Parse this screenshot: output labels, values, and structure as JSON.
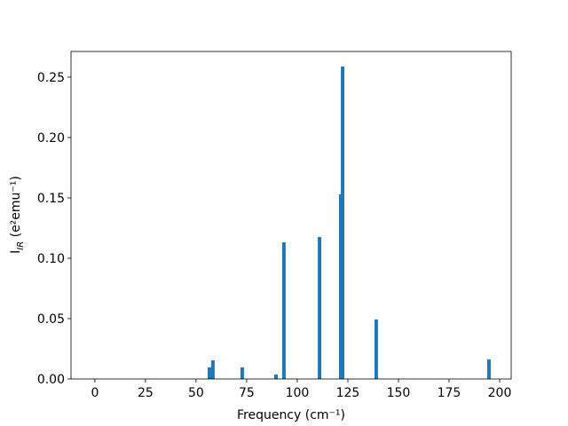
{
  "chart_data": {
    "type": "bar",
    "xlabel": "Frequency (cm⁻¹)",
    "ylabel": [
      "I",
      "IR",
      " (e²emu⁻¹)"
    ],
    "x": [
      56.6,
      58.3,
      72.8,
      89.5,
      93.4,
      111.0,
      121.5,
      122.4,
      139.0,
      194.7
    ],
    "values": [
      0.0096,
      0.0154,
      0.0096,
      0.0037,
      0.1132,
      0.1176,
      0.153,
      0.2588,
      0.0493,
      0.0162
    ],
    "color": "#1f77b4",
    "xlim": [
      -11.8,
      205.7
    ],
    "xticks": [
      0,
      25,
      50,
      75,
      100,
      125,
      150,
      175,
      200
    ],
    "ylim": [
      0,
      0.2713
    ],
    "yticks": [
      {
        "value": 0,
        "label": "0.00"
      },
      {
        "value": 0.05,
        "label": "0.05"
      },
      {
        "value": 0.1,
        "label": "0.10"
      },
      {
        "value": 0.15,
        "label": "0.15"
      },
      {
        "value": 0.2,
        "label": "0.20"
      },
      {
        "value": 0.25,
        "label": "0.25"
      }
    ]
  }
}
